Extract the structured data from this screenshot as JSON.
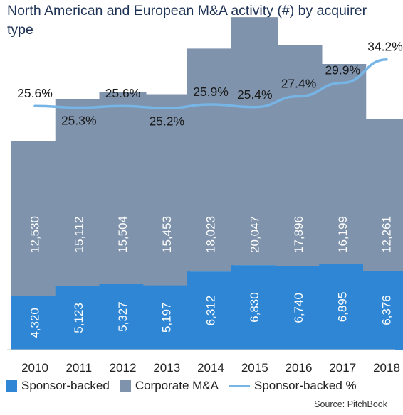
{
  "title": "North American and European M&A activity (#) by acquirer type",
  "source": "Source: PitchBook",
  "colors": {
    "sponsor": "#2e86d4",
    "corporate": "#7f93ac",
    "line": "#76b5e6",
    "bar_text": "#ffffff",
    "pct_text": "#1a1a1a"
  },
  "legend": [
    {
      "label": "Sponsor-backed",
      "kind": "box",
      "color": "#2e86d4"
    },
    {
      "label": "Corporate M&A",
      "kind": "box",
      "color": "#7f93ac"
    },
    {
      "label": "Sponsor-backed %",
      "kind": "line",
      "color": "#76b5e6"
    }
  ],
  "chart_data": {
    "type": "bar",
    "stacked": true,
    "categories": [
      "2010",
      "2011",
      "2012",
      "2013",
      "2014",
      "2015",
      "2016",
      "2017",
      "2018"
    ],
    "series": [
      {
        "name": "Sponsor-backed",
        "values": [
          4320,
          5123,
          5327,
          5197,
          6312,
          6830,
          6740,
          6895,
          6376
        ],
        "labels": [
          "4,320",
          "5,123",
          "5,327",
          "5,197",
          "6,312",
          "6,830",
          "6,740",
          "6,895",
          "6,376"
        ]
      },
      {
        "name": "Corporate M&A",
        "values": [
          12530,
          15112,
          15504,
          15453,
          18023,
          20047,
          17896,
          16199,
          12261
        ],
        "labels": [
          "12,530",
          "15,112",
          "15,504",
          "15,453",
          "18,023",
          "20,047",
          "17,896",
          "16,199",
          "12,261"
        ]
      },
      {
        "name": "Sponsor-backed %",
        "type": "line",
        "axis": "secondary",
        "values": [
          25.6,
          25.3,
          25.6,
          25.2,
          25.9,
          25.4,
          27.4,
          29.9,
          34.2
        ],
        "labels": [
          "25.6%",
          "25.3%",
          "25.6%",
          "25.2%",
          "25.9%",
          "25.4%",
          "27.4%",
          "29.9%",
          "34.2%"
        ]
      }
    ],
    "ylim": [
      0,
      27000
    ],
    "y2lim": [
      15,
      36
    ],
    "grid": false,
    "legend_position": "bottom"
  }
}
